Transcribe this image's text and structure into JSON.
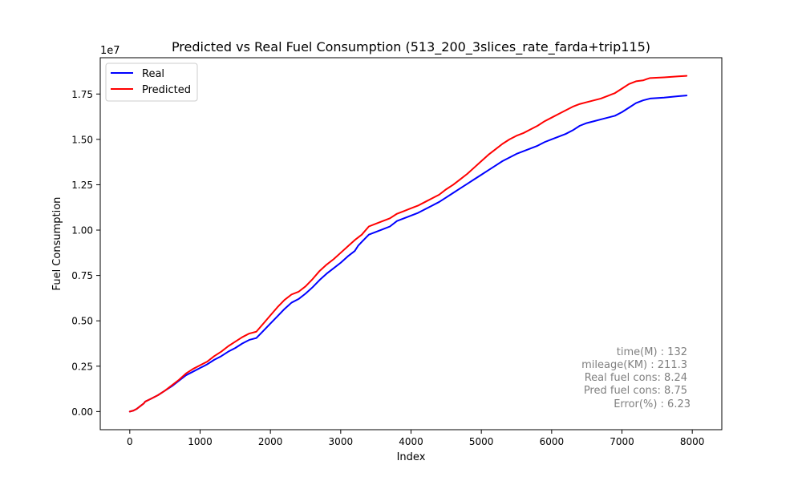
{
  "chart_data": {
    "type": "line",
    "title": "Predicted vs Real Fuel Consumption (513_200_3slices_rate_farda+trip115)",
    "xlabel": "Index",
    "ylabel": "Fuel Consumption",
    "y_offset_label": "1e7",
    "xlim": [
      -420,
      8420
    ],
    "ylim": [
      -1000000,
      19500000
    ],
    "x_ticks": [
      0,
      1000,
      2000,
      3000,
      4000,
      5000,
      6000,
      7000,
      8000
    ],
    "x_tick_labels": [
      "0",
      "1000",
      "2000",
      "3000",
      "4000",
      "5000",
      "6000",
      "7000",
      "8000"
    ],
    "y_ticks": [
      0,
      2500000,
      5000000,
      7500000,
      10000000,
      12500000,
      15000000,
      17500000
    ],
    "y_tick_labels": [
      "0.00",
      "0.25",
      "0.50",
      "0.75",
      "1.00",
      "1.25",
      "1.50",
      "1.75"
    ],
    "grid": false,
    "legend_position": "top-left",
    "series": [
      {
        "name": "Real",
        "color": "#0000ff",
        "x": [
          0,
          50,
          100,
          150,
          200,
          220,
          300,
          400,
          500,
          600,
          700,
          800,
          900,
          1000,
          1100,
          1200,
          1300,
          1400,
          1500,
          1600,
          1700,
          1800,
          1900,
          2000,
          2100,
          2200,
          2300,
          2400,
          2500,
          2600,
          2700,
          2800,
          2900,
          3000,
          3100,
          3200,
          3250,
          3300,
          3400,
          3500,
          3600,
          3700,
          3800,
          3900,
          4000,
          4100,
          4200,
          4300,
          4400,
          4500,
          4600,
          4700,
          4800,
          4900,
          5000,
          5100,
          5200,
          5300,
          5400,
          5500,
          5600,
          5700,
          5800,
          5900,
          6000,
          6100,
          6200,
          6300,
          6400,
          6500,
          6600,
          6700,
          6800,
          6900,
          7000,
          7100,
          7200,
          7300,
          7350,
          7400,
          7600,
          7800,
          7920
        ],
        "y": [
          0,
          50000,
          150000,
          300000,
          450000,
          550000,
          700000,
          900000,
          1150000,
          1400000,
          1700000,
          2000000,
          2200000,
          2400000,
          2600000,
          2850000,
          3050000,
          3300000,
          3500000,
          3750000,
          3950000,
          4050000,
          4450000,
          4850000,
          5250000,
          5650000,
          6000000,
          6200000,
          6500000,
          6850000,
          7250000,
          7600000,
          7900000,
          8200000,
          8550000,
          8850000,
          9150000,
          9350000,
          9750000,
          9900000,
          10050000,
          10200000,
          10500000,
          10650000,
          10800000,
          10950000,
          11150000,
          11350000,
          11550000,
          11800000,
          12050000,
          12300000,
          12550000,
          12800000,
          13050000,
          13300000,
          13550000,
          13800000,
          14000000,
          14200000,
          14350000,
          14500000,
          14650000,
          14850000,
          15000000,
          15150000,
          15300000,
          15500000,
          15750000,
          15900000,
          16000000,
          16100000,
          16200000,
          16300000,
          16500000,
          16750000,
          17000000,
          17150000,
          17200000,
          17250000,
          17300000,
          17380000,
          17420000
        ]
      },
      {
        "name": "Predicted",
        "color": "#ff0000",
        "x": [
          0,
          50,
          100,
          150,
          200,
          220,
          300,
          400,
          500,
          600,
          700,
          800,
          900,
          1000,
          1100,
          1200,
          1300,
          1400,
          1500,
          1600,
          1700,
          1800,
          1900,
          2000,
          2100,
          2200,
          2300,
          2400,
          2500,
          2600,
          2700,
          2800,
          2900,
          3000,
          3100,
          3200,
          3250,
          3300,
          3400,
          3500,
          3600,
          3700,
          3800,
          3900,
          4000,
          4100,
          4200,
          4300,
          4400,
          4500,
          4600,
          4700,
          4800,
          4900,
          5000,
          5100,
          5200,
          5300,
          5400,
          5500,
          5600,
          5700,
          5800,
          5900,
          6000,
          6100,
          6200,
          6300,
          6400,
          6500,
          6600,
          6700,
          6800,
          6900,
          7000,
          7100,
          7200,
          7300,
          7350,
          7400,
          7600,
          7800,
          7920
        ],
        "y": [
          0,
          50000,
          150000,
          300000,
          450000,
          550000,
          700000,
          900000,
          1150000,
          1450000,
          1750000,
          2100000,
          2350000,
          2550000,
          2750000,
          3050000,
          3300000,
          3600000,
          3850000,
          4100000,
          4300000,
          4400000,
          4850000,
          5300000,
          5750000,
          6150000,
          6450000,
          6600000,
          6900000,
          7300000,
          7750000,
          8100000,
          8400000,
          8750000,
          9100000,
          9450000,
          9600000,
          9750000,
          10200000,
          10350000,
          10500000,
          10650000,
          10900000,
          11050000,
          11200000,
          11350000,
          11550000,
          11750000,
          11950000,
          12250000,
          12500000,
          12800000,
          13100000,
          13450000,
          13800000,
          14150000,
          14450000,
          14750000,
          15000000,
          15200000,
          15350000,
          15550000,
          15750000,
          16000000,
          16200000,
          16400000,
          16600000,
          16800000,
          16950000,
          17050000,
          17150000,
          17250000,
          17400000,
          17550000,
          17800000,
          18050000,
          18200000,
          18250000,
          18320000,
          18380000,
          18420000,
          18470000,
          18500000
        ]
      }
    ],
    "annotations": [
      "time(M) : 132",
      "mileage(KM) : 211.3",
      "Real fuel cons: 8.24",
      "Pred fuel cons: 8.75",
      "Error(%) : 6.23"
    ],
    "annotation_color": "#808080"
  }
}
